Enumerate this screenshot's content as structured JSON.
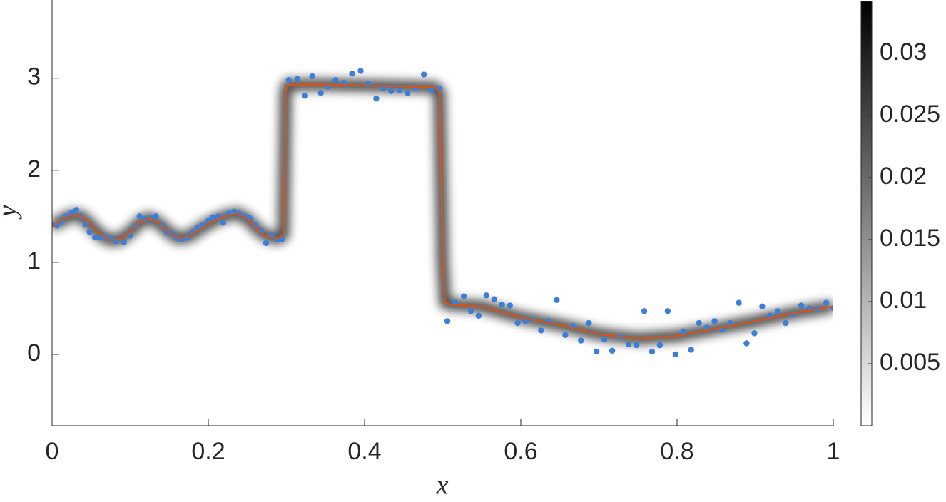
{
  "chart_data": {
    "type": "scatter",
    "xlabel": "x",
    "ylabel": "y",
    "xlim": [
      0,
      1
    ],
    "ylim": [
      -0.775,
      3.85
    ],
    "xticks": [
      0,
      0.2,
      0.4,
      0.6,
      0.8,
      1
    ],
    "yticks": [
      0,
      1,
      2,
      3
    ],
    "series": [
      {
        "kind": "scatter",
        "color": "#3b7fd6",
        "x": [
          0,
          0.006,
          0.012,
          0.017,
          0.025,
          0.031,
          0.037,
          0.043,
          0.048,
          0.055,
          0.061,
          0.068,
          0.075,
          0.082,
          0.092,
          0.1,
          0.106,
          0.112,
          0.119,
          0.127,
          0.133,
          0.141,
          0.147,
          0.153,
          0.16,
          0.166,
          0.173,
          0.18,
          0.186,
          0.192,
          0.2,
          0.206,
          0.213,
          0.219,
          0.226,
          0.233,
          0.239,
          0.247,
          0.253,
          0.26,
          0.268,
          0.274,
          0.281,
          0.288,
          0.294,
          0.303,
          0.314,
          0.324,
          0.333,
          0.344,
          0.353,
          0.363,
          0.374,
          0.384,
          0.395,
          0.405,
          0.415,
          0.424,
          0.434,
          0.445,
          0.455,
          0.465,
          0.476,
          0.486,
          0.496,
          0.506,
          0.516,
          0.527,
          0.536,
          0.546,
          0.556,
          0.566,
          0.576,
          0.586,
          0.596,
          0.606,
          0.616,
          0.626,
          0.636,
          0.646,
          0.657,
          0.667,
          0.677,
          0.687,
          0.697,
          0.707,
          0.717,
          0.727,
          0.738,
          0.748,
          0.758,
          0.768,
          0.778,
          0.788,
          0.798,
          0.808,
          0.818,
          0.828,
          0.838,
          0.848,
          0.858,
          0.868,
          0.879,
          0.889,
          0.899,
          0.909,
          0.919,
          0.929,
          0.939,
          0.949,
          0.959,
          0.969,
          0.979,
          0.991,
          1
        ],
        "values": [
          1.41,
          1.4,
          1.44,
          1.5,
          1.54,
          1.57,
          1.5,
          1.41,
          1.33,
          1.27,
          1.27,
          1.27,
          1.26,
          1.23,
          1.22,
          1.29,
          1.39,
          1.5,
          1.47,
          1.48,
          1.5,
          1.4,
          1.33,
          1.31,
          1.26,
          1.25,
          1.27,
          1.33,
          1.38,
          1.4,
          1.45,
          1.49,
          1.5,
          1.43,
          1.53,
          1.55,
          1.53,
          1.5,
          1.48,
          1.4,
          1.34,
          1.21,
          1.29,
          1.25,
          1.25,
          2.98,
          2.99,
          2.81,
          3.02,
          2.84,
          2.91,
          2.98,
          2.95,
          3.05,
          3.08,
          2.94,
          2.78,
          2.89,
          2.86,
          2.87,
          2.84,
          2.89,
          3.04,
          2.87,
          2.89,
          0.36,
          0.56,
          0.63,
          0.47,
          0.42,
          0.64,
          0.6,
          0.54,
          0.53,
          0.34,
          0.36,
          0.38,
          0.26,
          0.36,
          0.59,
          0.21,
          0.31,
          0.15,
          0.34,
          0.03,
          0.16,
          0.04,
          0.19,
          0.11,
          0.1,
          0.47,
          0.03,
          0.1,
          0.47,
          0,
          0.25,
          0.05,
          0.34,
          0.29,
          0.36,
          0.27,
          0.34,
          0.56,
          0.12,
          0.23,
          0.52,
          0.42,
          0.47,
          0.34,
          0.44,
          0.53,
          0.5,
          0.49,
          0.56,
          0.5
        ]
      },
      {
        "kind": "line",
        "color": "#d95319",
        "x": [
          0,
          0.0125,
          0.025,
          0.0375,
          0.05,
          0.0625,
          0.075,
          0.0875,
          0.1,
          0.1125,
          0.125,
          0.1375,
          0.15,
          0.1625,
          0.175,
          0.1875,
          0.2,
          0.2125,
          0.225,
          0.2375,
          0.25,
          0.2625,
          0.275,
          0.29,
          0.296,
          0.299,
          0.302,
          0.35,
          0.4,
          0.45,
          0.49,
          0.496,
          0.5,
          0.503,
          0.51,
          0.55,
          0.6,
          0.65,
          0.7,
          0.75,
          0.8,
          0.85,
          0.9,
          0.95,
          1
        ],
        "values": [
          1.39,
          1.46,
          1.51,
          1.5,
          1.4,
          1.29,
          1.24,
          1.25,
          1.33,
          1.44,
          1.48,
          1.42,
          1.32,
          1.26,
          1.28,
          1.35,
          1.42,
          1.47,
          1.51,
          1.53,
          1.47,
          1.36,
          1.28,
          1.26,
          1.3,
          2.85,
          2.93,
          2.93,
          2.92,
          2.91,
          2.9,
          2.85,
          1.0,
          0.56,
          0.54,
          0.52,
          0.4,
          0.32,
          0.22,
          0.17,
          0.2,
          0.28,
          0.36,
          0.45,
          0.52
        ]
      }
    ],
    "colorbar": {
      "lim": [
        0,
        0.0342
      ],
      "ticks": [
        0.005,
        0.01,
        0.015,
        0.02,
        0.025,
        0.03
      ],
      "colors": [
        "#ffffff",
        "#000000"
      ]
    }
  }
}
